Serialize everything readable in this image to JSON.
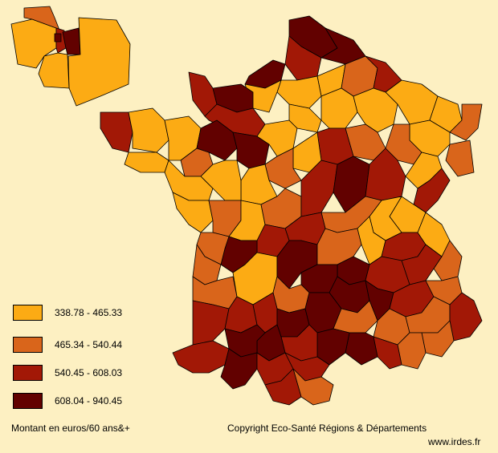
{
  "colors": {
    "c1": "#fcab14",
    "c2": "#d9651b",
    "c3": "#a21806",
    "c4": "#620100",
    "background": "#fdf0c2",
    "border": "#000000"
  },
  "legend": [
    {
      "label": "338.78 - 465.33",
      "color": "#fcab14"
    },
    {
      "label": "465.34 - 540.44",
      "color": "#d9651b"
    },
    {
      "label": "540.45 - 608.03",
      "color": "#a21806"
    },
    {
      "label": "608.04 - 940.45",
      "color": "#620100"
    }
  ],
  "footer": {
    "unit": "Montant en euros/60 ans&+",
    "copyright": "Copyright Eco-Santé Régions & Départements",
    "site": "www.irdes.fr"
  }
}
